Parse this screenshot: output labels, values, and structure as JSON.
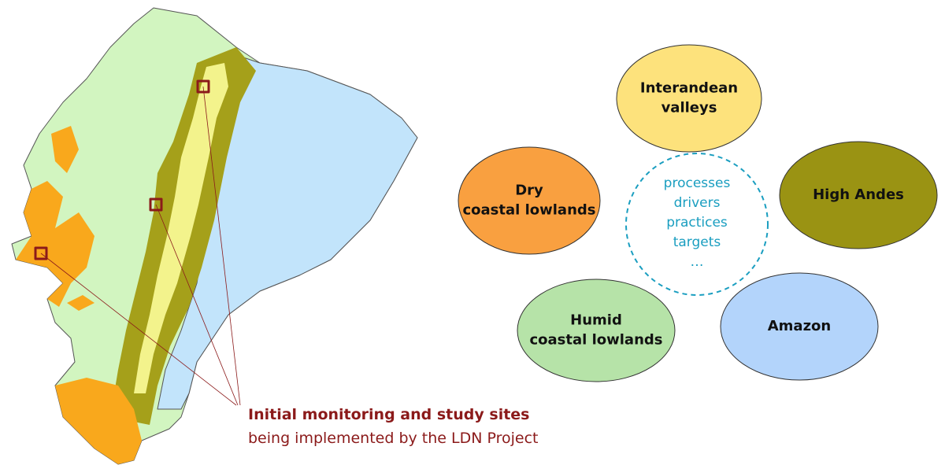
{
  "map": {
    "annotation": {
      "title": "Initial monitoring and study sites",
      "subtitle": "being implemented by the LDN Project"
    }
  },
  "regions": [
    {
      "label": [
        "Interandean",
        "valleys"
      ]
    },
    {
      "label": [
        "Dry",
        "coastal lowlands"
      ]
    },
    {
      "label": [
        "High Andes"
      ]
    },
    {
      "label": [
        "Humid",
        "coastal lowlands"
      ]
    },
    {
      "label": [
        "Amazon"
      ]
    }
  ],
  "center": {
    "items": [
      "processes",
      "drivers",
      "practices",
      "targets",
      "…"
    ]
  }
}
